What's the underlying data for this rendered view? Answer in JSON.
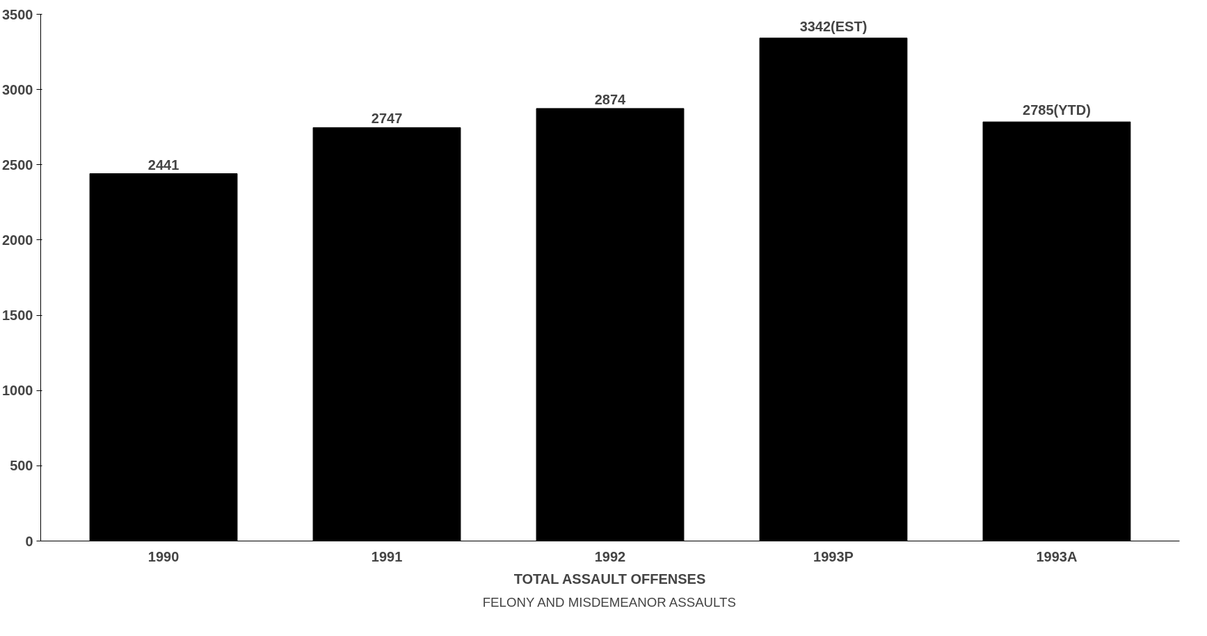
{
  "chart_data": {
    "type": "bar",
    "title": "TOTAL ASSAULT OFFENSES",
    "subtitle": "FELONY AND MISDEMEANOR ASSAULTS",
    "categories": [
      "1990",
      "1991",
      "1992",
      "1993P",
      "1993A"
    ],
    "values": [
      2441,
      2747,
      2874,
      3342,
      2785
    ],
    "value_labels": [
      "2441",
      "2747",
      "2874",
      "3342(EST)",
      "2785(YTD)"
    ],
    "color": "#000000",
    "ylim": [
      0,
      3500
    ],
    "yticks": [
      0,
      500,
      1000,
      1500,
      2000,
      2500,
      3000,
      3500
    ],
    "grid": false
  }
}
